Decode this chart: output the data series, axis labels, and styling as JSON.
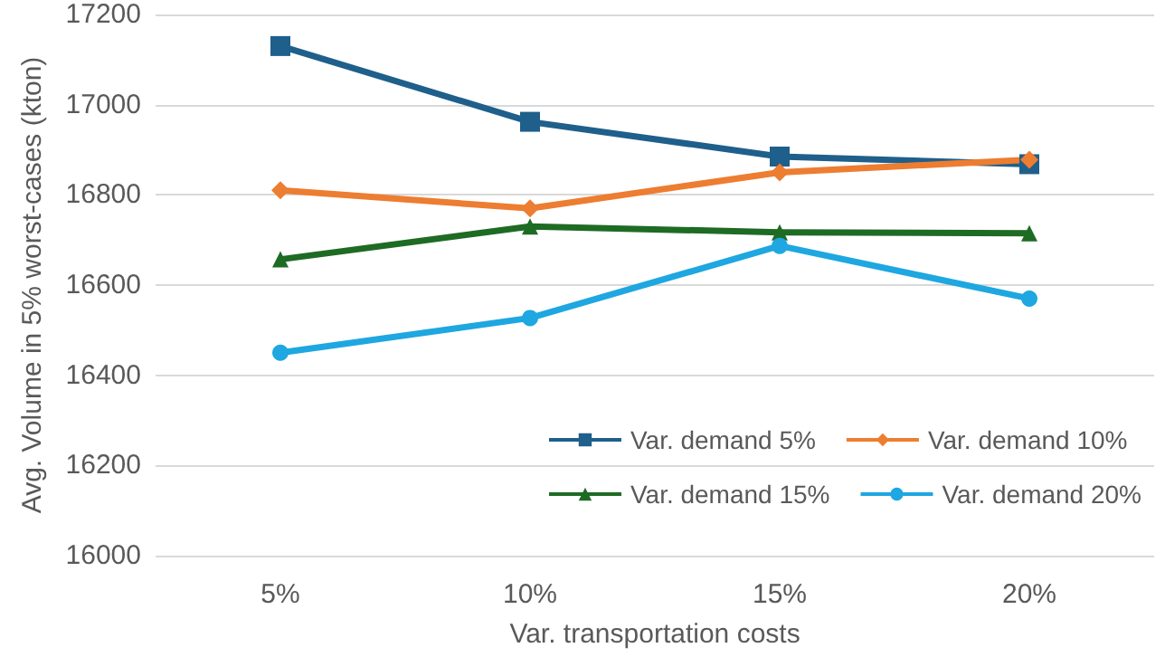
{
  "chart_data": {
    "type": "line",
    "xlabel": "Var. transportation costs",
    "ylabel": "Avg. Volume in 5% worst-cases (kton)",
    "categories": [
      "5%",
      "10%",
      "15%",
      "20%"
    ],
    "series": [
      {
        "name": "Var. demand 5%",
        "color": "#1f5f8b",
        "marker": "square",
        "values": [
          17130,
          16962,
          16885,
          16868
        ]
      },
      {
        "name": "Var. demand 10%",
        "color": "#ed7d31",
        "marker": "diamond",
        "values": [
          16810,
          16770,
          16850,
          16878
        ]
      },
      {
        "name": "Var. demand 15%",
        "color": "#1e6b24",
        "marker": "triangle",
        "values": [
          16657,
          16730,
          16717,
          16715
        ]
      },
      {
        "name": "Var. demand 20%",
        "color": "#1ea7e0",
        "marker": "circle",
        "values": [
          16450,
          16527,
          16687,
          16570
        ]
      }
    ],
    "ylim": [
      16000,
      17200
    ],
    "yticks": [
      16000,
      16200,
      16400,
      16600,
      16800,
      17000,
      17200
    ],
    "grid": "y",
    "legend": "bottom right"
  }
}
